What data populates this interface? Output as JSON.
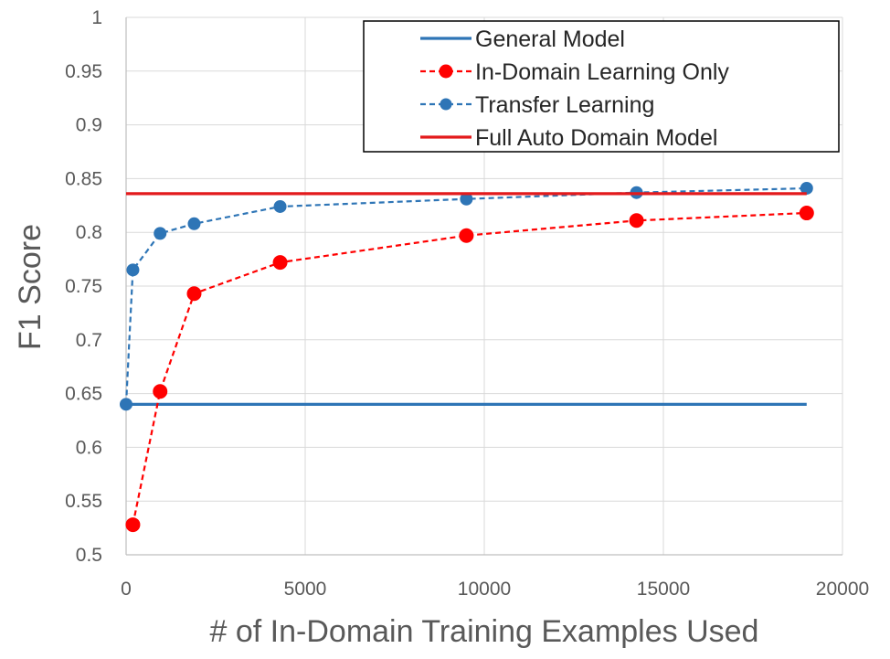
{
  "chart_data": {
    "type": "line",
    "title": "",
    "xlabel": "# of In-Domain Training Examples Used",
    "ylabel": "F1 Score",
    "xlim": [
      0,
      20000
    ],
    "ylim": [
      0.5,
      1.0
    ],
    "x_ticks": [
      0,
      5000,
      10000,
      15000,
      20000
    ],
    "y_ticks": [
      0.5,
      0.55,
      0.6,
      0.65,
      0.7,
      0.75,
      0.8,
      0.85,
      0.9,
      0.95,
      1.0
    ],
    "x_tick_labels": [
      "0",
      "5000",
      "10000",
      "15000",
      "20000"
    ],
    "y_tick_labels": [
      "0.5",
      "0.55",
      "0.6",
      "0.65",
      "0.7",
      "0.75",
      "0.8",
      "0.85",
      "0.9",
      "0.95",
      "1"
    ],
    "grid": true,
    "legend_position": "top-right",
    "series": [
      {
        "name": "General Model",
        "style": "solid",
        "markers": false,
        "color": "#2e75b6",
        "x": [
          0,
          19000
        ],
        "y": [
          0.64,
          0.64
        ]
      },
      {
        "name": "In-Domain Learning Only",
        "style": "dashed",
        "markers": true,
        "color": "#ff0000",
        "x": [
          190,
          950,
          1900,
          4300,
          9500,
          14250,
          19000
        ],
        "y": [
          0.528,
          0.652,
          0.743,
          0.772,
          0.797,
          0.811,
          0.818
        ]
      },
      {
        "name": "Transfer Learning",
        "style": "dashed",
        "markers": true,
        "color": "#2e75b6",
        "x": [
          0,
          190,
          950,
          1900,
          4300,
          9500,
          14250,
          19000
        ],
        "y": [
          0.64,
          0.765,
          0.799,
          0.808,
          0.824,
          0.831,
          0.837,
          0.841
        ]
      },
      {
        "name": "Full Auto Domain Model",
        "style": "solid",
        "markers": false,
        "color": "#e31a1c",
        "x": [
          0,
          19000
        ],
        "y": [
          0.836,
          0.836
        ]
      }
    ]
  }
}
